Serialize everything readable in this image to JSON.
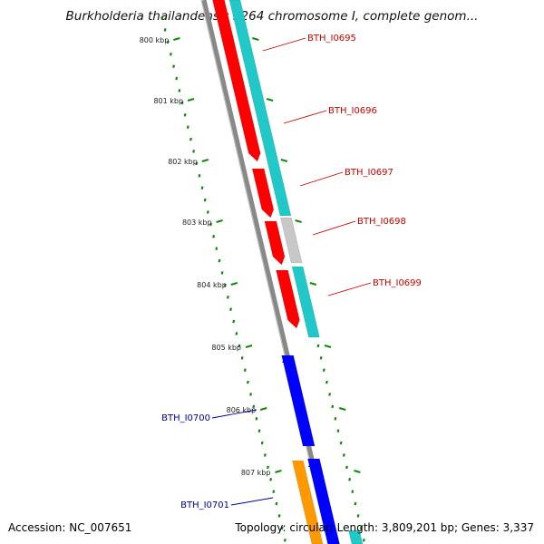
{
  "title": "Burkholderia thailandensis E264 chromosome I, complete genom...",
  "footer": {
    "accession": "Accession: NC_007651",
    "summary": "Topology: circular; Length: 3,809,201 bp; Genes: 3,337"
  },
  "scale_labels": [
    "800 kbp",
    "801 kbp",
    "802 kbp",
    "803 kbp",
    "804 kbp",
    "805 kbp",
    "806 kbp",
    "807 kbp"
  ],
  "colors": {
    "forward_cds": "#ff0000",
    "reverse_cds": "#0000ff",
    "forward_track": "#20c8c8",
    "other_feature": "#c8c8c8",
    "orange_feature": "#ff9900",
    "backbone": "#888888",
    "scale": "#118811",
    "label_forward": "#cc0000",
    "label_reverse": "#000099"
  },
  "genes": [
    {
      "name": "BTH_I0695",
      "strand": "forward"
    },
    {
      "name": "BTH_I0696",
      "strand": "forward"
    },
    {
      "name": "BTH_I0697",
      "strand": "forward"
    },
    {
      "name": "BTH_I0698",
      "strand": "forward"
    },
    {
      "name": "BTH_I0699",
      "strand": "forward"
    },
    {
      "name": "BTH_I0700",
      "strand": "reverse"
    },
    {
      "name": "BTH_I0701",
      "strand": "reverse"
    }
  ]
}
